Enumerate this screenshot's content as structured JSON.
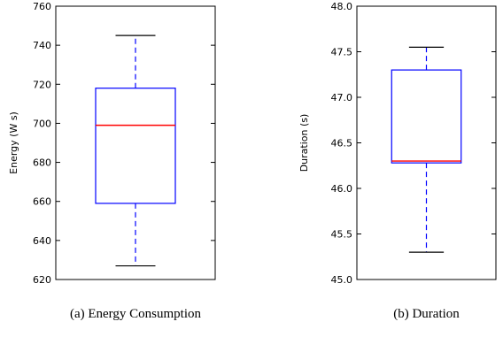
{
  "chart_data": [
    {
      "type": "box",
      "caption": "(a) Energy Consumption",
      "ylabel": "Energy (W s)",
      "ylim": [
        620,
        760
      ],
      "yticks": [
        620,
        640,
        660,
        680,
        700,
        720,
        740,
        760
      ],
      "box": {
        "whisker_low": 627,
        "q1": 659,
        "median": 699,
        "q3": 718,
        "whisker_high": 745
      }
    },
    {
      "type": "box",
      "caption": "(b) Duration",
      "ylabel": "Duration (s)",
      "ylim": [
        45.0,
        48.0
      ],
      "yticks": [
        "45.0",
        "45.5",
        "46.0",
        "46.5",
        "47.0",
        "47.5",
        "48.0"
      ],
      "box": {
        "whisker_low": 45.3,
        "q1": 46.28,
        "median": 46.3,
        "q3": 47.3,
        "whisker_high": 47.55
      }
    }
  ],
  "colors": {
    "box": "#0000ff",
    "median": "#ff0000",
    "whisker": "#0000ff",
    "cap": "#000000",
    "axes": "#000000"
  }
}
